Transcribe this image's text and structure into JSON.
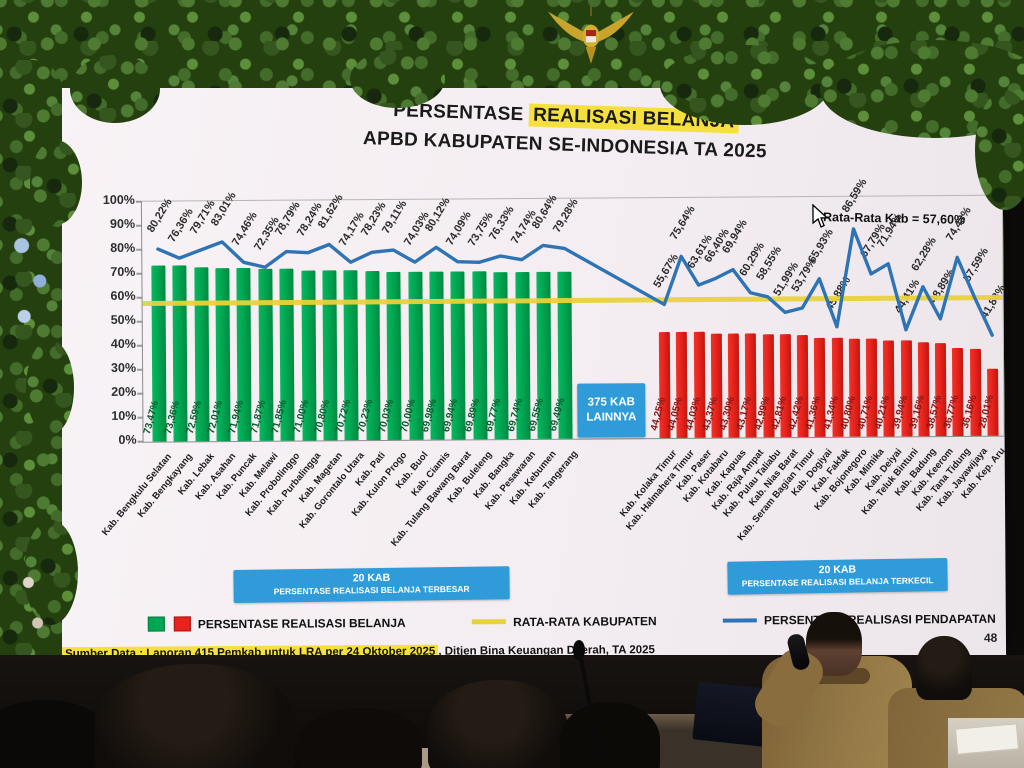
{
  "scene": {
    "page_number": "48"
  },
  "slide": {
    "title": {
      "prefix": "PERSENTASE ",
      "highlight": "REALISASI BELANJA",
      "line2": "APBD KABUPATEN SE-INDONESIA TA 2025"
    },
    "annotation": "Rata-Rata Kab = 57,60%",
    "middle_box": {
      "line1": "375 KAB",
      "line2": "LAINNYA"
    },
    "group_boxes": [
      {
        "line1": "20 KAB",
        "line2": "PERSENTASE REALISASI BELANJA TERBESAR"
      },
      {
        "line1": "20 KAB",
        "line2": "PERSENTASE REALISASI BELANJA TERKECIL"
      }
    ],
    "legend": [
      {
        "swatch": "green-red-squares",
        "label": "PERSENTASE REALISASI BELANJA"
      },
      {
        "swatch": "yellow-line",
        "label": "RATA-RATA KABUPATEN"
      },
      {
        "swatch": "blue-line",
        "label": "PERSENTASE REALISASI PENDAPATAN"
      }
    ],
    "footer": {
      "highlight": "Sumber Data : Laporan 415 Pemkab untuk LRA per 24 Oktober 2025",
      "rest": ", Ditjen Bina Keuangan Daerah, TA 2025"
    }
  },
  "colors": {
    "green_bar": "#00A651",
    "red_bar": "#E6231C",
    "yellow_avg_line": "#E8D23C",
    "blue_line": "#2E74B5",
    "box_blue": "#2F9CD9",
    "highlight_yellow": "#F5E03E"
  },
  "chart_data": {
    "type": "bar",
    "title": "PERSENTASE REALISASI BELANJA APBD KABUPATEN SE-INDONESIA TA 2025",
    "ylabel": "",
    "xlabel": "",
    "ylim": [
      0,
      100
    ],
    "ytick_step": 10,
    "grid": false,
    "average_line_value": 57.6,
    "average_line_label": "Rata-Rata Kab = 57,60%",
    "middle_gap_label": "375 KAB LAINNYA",
    "groups": [
      {
        "name": "20 KAB PERSENTASE REALISASI BELANJA TERBESAR",
        "bar_color": "green",
        "categories": [
          "Kab. Bengkulu Selatan",
          "Kab. Bengkayang",
          "Kab. Lebak",
          "Kab. Asahan",
          "Kab. Puncak",
          "Kab. Melawi",
          "Kab. Probolinggo",
          "Kab. Purbalingga",
          "Kab. Magetan",
          "Kab. Gorontalo Utara",
          "Kab. Pati",
          "Kab. Kulon Progo",
          "Kab. Buol",
          "Kab. Ciamis",
          "Kab. Tulang Bawang Barat",
          "Kab. Buleleng",
          "Kab. Bangka",
          "Kab. Pesawaran",
          "Kab. Kebumen",
          "Kab. Tangerang"
        ],
        "belanja_pct": [
          73.47,
          73.36,
          72.59,
          72.01,
          71.94,
          71.87,
          71.85,
          71.0,
          70.8,
          70.72,
          70.23,
          70.03,
          70.0,
          69.98,
          69.94,
          69.89,
          69.77,
          69.74,
          69.55,
          69.49
        ],
        "pendapatan_pct": [
          80.22,
          76.36,
          79.71,
          83.01,
          74.46,
          72.35,
          78.79,
          78.24,
          81.62,
          74.17,
          78.23,
          79.11,
          74.03,
          80.12,
          74.09,
          73.75,
          76.33,
          74.74,
          80.64,
          79.28
        ]
      },
      {
        "name": "20 KAB PERSENTASE REALISASI BELANJA TERKECIL",
        "bar_color": "red",
        "categories": [
          "Kab. Kolaka Timur",
          "Kab. Halmahera Timur",
          "Kab. Paser",
          "Kab. Kotabaru",
          "Kab. Kapuas",
          "Kab. Raja Ampat",
          "Kab. Pulau Taliabu",
          "Kab. Nias Barat",
          "Kab. Seram Bagian Timur",
          "Kab. Dogiyai",
          "Kab. Fakfak",
          "Kab. Bojonegoro",
          "Kab. Mimika",
          "Kab. Deiyai",
          "Kab. Teluk Bintuni",
          "Kab. Badung",
          "Kab. Keerom",
          "Kab. Tana Tidung",
          "Kab. Jayawijaya",
          "Kab. Kep. Aru"
        ],
        "belanja_pct": [
          44.25,
          44.05,
          44.03,
          43.37,
          43.3,
          43.17,
          42.99,
          42.81,
          42.42,
          41.36,
          41.34,
          40.8,
          40.71,
          40.21,
          39.94,
          39.16,
          38.57,
          36.77,
          36.16,
          28.01
        ],
        "pendapatan_pct": [
          55.67,
          75.64,
          63.61,
          66.4,
          69.94,
          60.29,
          58.55,
          51.99,
          53.79,
          65.93,
          45.88,
          86.59,
          67.79,
          71.94,
          44.41,
          62.28,
          48.89,
          74.43,
          57.59,
          41.88
        ]
      }
    ]
  }
}
